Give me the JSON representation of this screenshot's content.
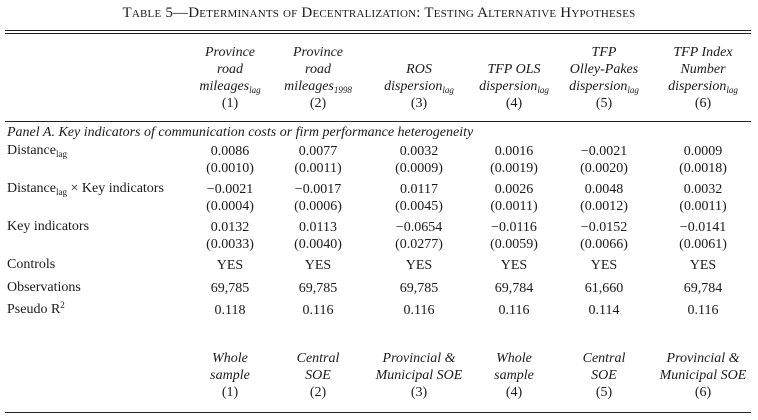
{
  "title": "Table 5—Determinants of Decentralization: Testing Alternative Hypotheses",
  "columns": [
    {
      "lines": [
        "Province",
        "road",
        "mileages"
      ],
      "sub": "lag",
      "num": "(1)"
    },
    {
      "lines": [
        "Province",
        "road",
        "mileages"
      ],
      "sub": "1998",
      "num": "(2)"
    },
    {
      "lines": [
        "ROS",
        "dispersion"
      ],
      "sub": "lag",
      "num": "(3)"
    },
    {
      "lines": [
        "TFP OLS",
        "dispersion"
      ],
      "sub": "lag",
      "num": "(4)"
    },
    {
      "lines": [
        "TFP",
        "Olley-Pakes",
        "dispersion"
      ],
      "sub": "lag",
      "num": "(5)"
    },
    {
      "lines": [
        "TFP Index",
        "Number",
        "dispersion"
      ],
      "sub": "lag",
      "num": "(6)"
    }
  ],
  "panel_title": "Panel A. Key indicators of communication costs or firm performance heterogeneity",
  "rows": [
    {
      "label": "Distance",
      "label_sub": "lag",
      "label_rest": "",
      "coef": [
        "0.0086",
        "0.0077",
        "0.0032",
        "0.0016",
        "−0.0021",
        "0.0009"
      ],
      "se": [
        "(0.0010)",
        "(0.0011)",
        "(0.0009)",
        "(0.0019)",
        "(0.0020)",
        "(0.0018)"
      ]
    },
    {
      "label": "Distance",
      "label_sub": "lag",
      "label_rest": " × Key indicators",
      "coef": [
        "−0.0021",
        "−0.0017",
        "0.0117",
        "0.0026",
        "0.0048",
        "0.0032"
      ],
      "se": [
        "(0.0004)",
        "(0.0006)",
        "(0.0045)",
        "(0.0011)",
        "(0.0012)",
        "(0.0011)"
      ]
    },
    {
      "label": "Key indicators",
      "label_sub": "",
      "label_rest": "",
      "coef": [
        "0.0132",
        "0.0113",
        "−0.0654",
        "−0.0116",
        "−0.0152",
        "−0.0141"
      ],
      "se": [
        "(0.0033)",
        "(0.0040)",
        "(0.0277)",
        "(0.0059)",
        "(0.0066)",
        "(0.0061)"
      ]
    }
  ],
  "single_rows": [
    {
      "label": "Controls",
      "values": [
        "YES",
        "YES",
        "YES",
        "YES",
        "YES",
        "YES"
      ]
    },
    {
      "label": "Observations",
      "values": [
        "69,785",
        "69,785",
        "69,785",
        "69,784",
        "61,660",
        "69,784"
      ]
    },
    {
      "label": "Pseudo R",
      "label_sup": "2",
      "values": [
        "0.118",
        "0.116",
        "0.116",
        "0.116",
        "0.114",
        "0.116"
      ]
    }
  ],
  "footer": [
    {
      "lines": [
        "Whole",
        "sample"
      ],
      "num": "(1)"
    },
    {
      "lines": [
        "Central",
        "SOE"
      ],
      "num": "(2)"
    },
    {
      "lines": [
        "Provincial &",
        "Municipal SOE"
      ],
      "num": "(3)"
    },
    {
      "lines": [
        "Whole",
        "sample"
      ],
      "num": "(4)"
    },
    {
      "lines": [
        "Central",
        "SOE"
      ],
      "num": "(5)"
    },
    {
      "lines": [
        "Provincial &",
        "Municipal SOE"
      ],
      "num": "(6)"
    }
  ]
}
